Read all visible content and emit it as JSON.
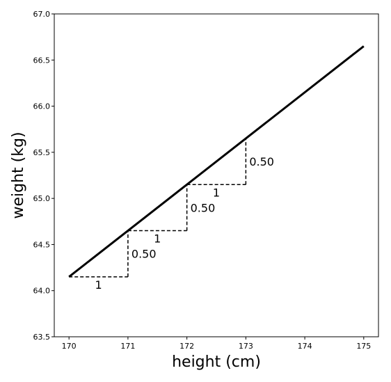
{
  "chart_data": {
    "type": "line",
    "title": "",
    "xlabel": "height (cm)",
    "ylabel": "weight (kg)",
    "xlim": [
      169.75,
      175.25
    ],
    "ylim": [
      63.5,
      67.0
    ],
    "grid": false,
    "x_ticks": [
      170,
      171,
      172,
      173,
      174,
      175
    ],
    "x_tick_labels": [
      "170",
      "171",
      "172",
      "173",
      "174",
      "175"
    ],
    "y_ticks": [
      63.5,
      64.0,
      64.5,
      65.0,
      65.5,
      66.0,
      66.5,
      67.0
    ],
    "y_tick_labels": [
      "63.5",
      "64.0",
      "64.5",
      "65.0",
      "65.5",
      "66.0",
      "66.5",
      "67.0"
    ],
    "series": [
      {
        "x": [
          170,
          175
        ],
        "y": [
          64.15,
          66.65
        ],
        "color": "#000000"
      }
    ],
    "steps": [
      {
        "x0": 170,
        "y0": 64.15,
        "run": 1,
        "rise": 0.5,
        "run_label": "1",
        "rise_label": "0.50"
      },
      {
        "x0": 171,
        "y0": 64.65,
        "run": 1,
        "rise": 0.5,
        "run_label": "1",
        "rise_label": "0.50"
      },
      {
        "x0": 172,
        "y0": 65.15,
        "run": 1,
        "rise": 0.5,
        "run_label": "1",
        "rise_label": "0.50"
      }
    ]
  }
}
